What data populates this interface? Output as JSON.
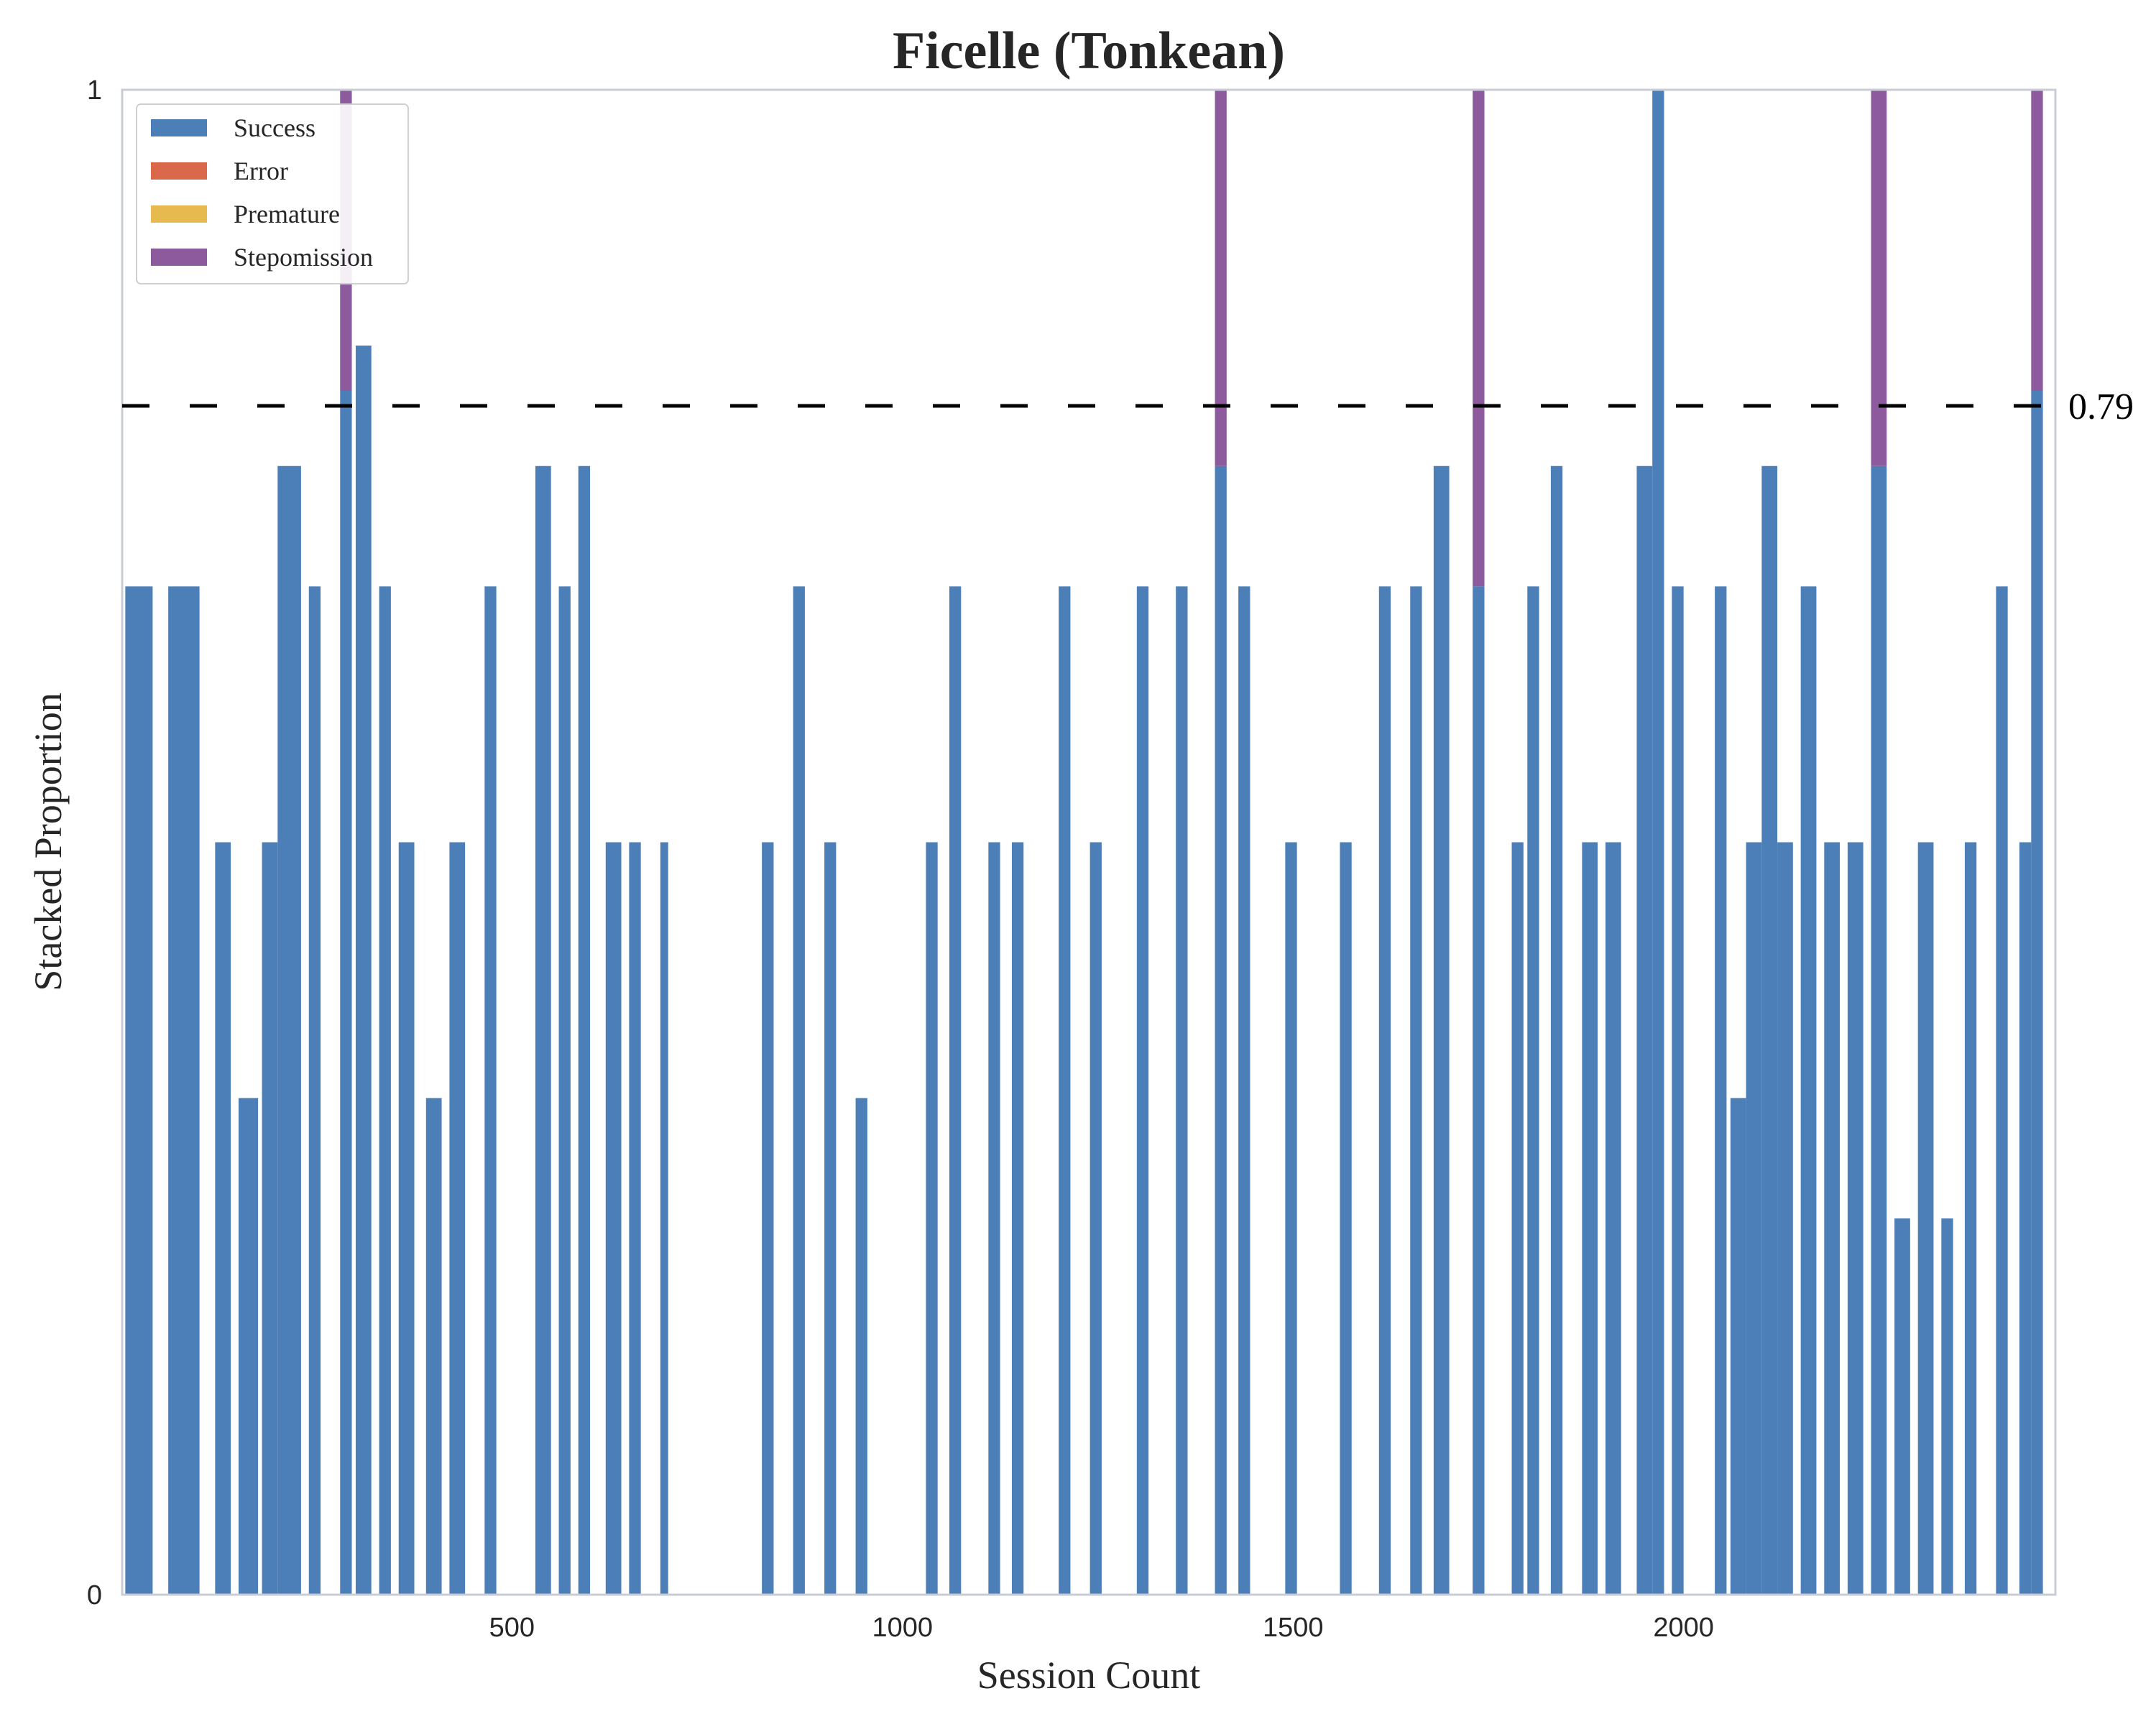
{
  "chart_data": {
    "type": "bar",
    "stacked": true,
    "title": "Ficelle (Tonkean)",
    "xlabel": "Session Count",
    "ylabel": "Stacked Proportion",
    "xlim": [
      1,
      2476
    ],
    "ylim": [
      0,
      1
    ],
    "x_ticks": [
      500,
      1000,
      1500,
      2000
    ],
    "y_ticks": [
      0,
      1
    ],
    "grid": false,
    "legend_position": "upper-left",
    "series": [
      {
        "name": "Success",
        "color": "#4C7FB8"
      },
      {
        "name": "Error",
        "color": "#D9694A"
      },
      {
        "name": "Premature",
        "color": "#E6BA4E"
      },
      {
        "name": "Stepomission",
        "color": "#8E5A9E"
      }
    ],
    "reference_line": {
      "value": 0.79,
      "label": "0.79",
      "style": "dashed",
      "color": "#000000"
    },
    "session_blocks": [
      {
        "x_start": 5,
        "x_end": 40,
        "success": 0.67
      },
      {
        "x_start": 60,
        "x_end": 100,
        "success": 0.67
      },
      {
        "x_start": 120,
        "x_end": 140,
        "success": 0.5
      },
      {
        "x_start": 150,
        "x_end": 175,
        "success": 0.33
      },
      {
        "x_start": 180,
        "x_end": 200,
        "success": 0.5
      },
      {
        "x_start": 200,
        "x_end": 230,
        "success": 0.75
      },
      {
        "x_start": 240,
        "x_end": 255,
        "success": 0.67
      },
      {
        "x_start": 280,
        "x_end": 295,
        "success": 0.8,
        "stepomission": 0.2
      },
      {
        "x_start": 300,
        "x_end": 320,
        "success": 0.83
      },
      {
        "x_start": 330,
        "x_end": 345,
        "success": 0.67
      },
      {
        "x_start": 355,
        "x_end": 375,
        "success": 0.5
      },
      {
        "x_start": 390,
        "x_end": 410,
        "success": 0.33
      },
      {
        "x_start": 420,
        "x_end": 440,
        "success": 0.5
      },
      {
        "x_start": 465,
        "x_end": 480,
        "success": 0.67
      },
      {
        "x_start": 530,
        "x_end": 550,
        "success": 0.75
      },
      {
        "x_start": 560,
        "x_end": 575,
        "success": 0.67
      },
      {
        "x_start": 585,
        "x_end": 600,
        "success": 0.75
      },
      {
        "x_start": 620,
        "x_end": 640,
        "success": 0.5
      },
      {
        "x_start": 650,
        "x_end": 665,
        "success": 0.5
      },
      {
        "x_start": 690,
        "x_end": 700,
        "success": 0.5
      },
      {
        "x_start": 820,
        "x_end": 835,
        "success": 0.5
      },
      {
        "x_start": 860,
        "x_end": 875,
        "success": 0.67
      },
      {
        "x_start": 900,
        "x_end": 915,
        "success": 0.5
      },
      {
        "x_start": 940,
        "x_end": 955,
        "success": 0.33
      },
      {
        "x_start": 1030,
        "x_end": 1045,
        "success": 0.5
      },
      {
        "x_start": 1060,
        "x_end": 1075,
        "success": 0.67
      },
      {
        "x_start": 1110,
        "x_end": 1125,
        "success": 0.5
      },
      {
        "x_start": 1140,
        "x_end": 1155,
        "success": 0.5
      },
      {
        "x_start": 1200,
        "x_end": 1215,
        "success": 0.67
      },
      {
        "x_start": 1240,
        "x_end": 1255,
        "success": 0.5
      },
      {
        "x_start": 1300,
        "x_end": 1315,
        "success": 0.67
      },
      {
        "x_start": 1350,
        "x_end": 1365,
        "success": 0.67
      },
      {
        "x_start": 1400,
        "x_end": 1415,
        "success": 0.75,
        "stepomission": 0.25
      },
      {
        "x_start": 1430,
        "x_end": 1445,
        "success": 0.67
      },
      {
        "x_start": 1490,
        "x_end": 1505,
        "success": 0.5
      },
      {
        "x_start": 1560,
        "x_end": 1575,
        "success": 0.5
      },
      {
        "x_start": 1610,
        "x_end": 1625,
        "success": 0.67
      },
      {
        "x_start": 1650,
        "x_end": 1665,
        "success": 0.67
      },
      {
        "x_start": 1680,
        "x_end": 1700,
        "success": 0.75
      },
      {
        "x_start": 1730,
        "x_end": 1745,
        "success": 0.67,
        "stepomission": 0.33
      },
      {
        "x_start": 1780,
        "x_end": 1795,
        "success": 0.5
      },
      {
        "x_start": 1800,
        "x_end": 1815,
        "success": 0.67
      },
      {
        "x_start": 1830,
        "x_end": 1845,
        "success": 0.75
      },
      {
        "x_start": 1870,
        "x_end": 1890,
        "success": 0.5
      },
      {
        "x_start": 1900,
        "x_end": 1920,
        "success": 0.5
      },
      {
        "x_start": 1940,
        "x_end": 1960,
        "success": 0.75
      },
      {
        "x_start": 1960,
        "x_end": 1975,
        "success": 1.0
      },
      {
        "x_start": 1985,
        "x_end": 2000,
        "success": 0.67
      },
      {
        "x_start": 2040,
        "x_end": 2055,
        "success": 0.67
      },
      {
        "x_start": 2060,
        "x_end": 2080,
        "success": 0.33
      },
      {
        "x_start": 2080,
        "x_end": 2100,
        "success": 0.5
      },
      {
        "x_start": 2100,
        "x_end": 2120,
        "success": 0.75
      },
      {
        "x_start": 2120,
        "x_end": 2140,
        "success": 0.5
      },
      {
        "x_start": 2150,
        "x_end": 2170,
        "success": 0.67
      },
      {
        "x_start": 2180,
        "x_end": 2200,
        "success": 0.5
      },
      {
        "x_start": 2210,
        "x_end": 2230,
        "success": 0.5
      },
      {
        "x_start": 2240,
        "x_end": 2260,
        "success": 0.75,
        "stepomission": 0.25
      },
      {
        "x_start": 2270,
        "x_end": 2290,
        "success": 0.25
      },
      {
        "x_start": 2300,
        "x_end": 2320,
        "success": 0.5
      },
      {
        "x_start": 2330,
        "x_end": 2345,
        "success": 0.25
      },
      {
        "x_start": 2360,
        "x_end": 2375,
        "success": 0.5
      },
      {
        "x_start": 2400,
        "x_end": 2415,
        "success": 0.67
      },
      {
        "x_start": 2430,
        "x_end": 2445,
        "success": 0.5
      },
      {
        "x_start": 2445,
        "x_end": 2460,
        "success": 0.8,
        "stepomission": 0.2
      }
    ]
  }
}
